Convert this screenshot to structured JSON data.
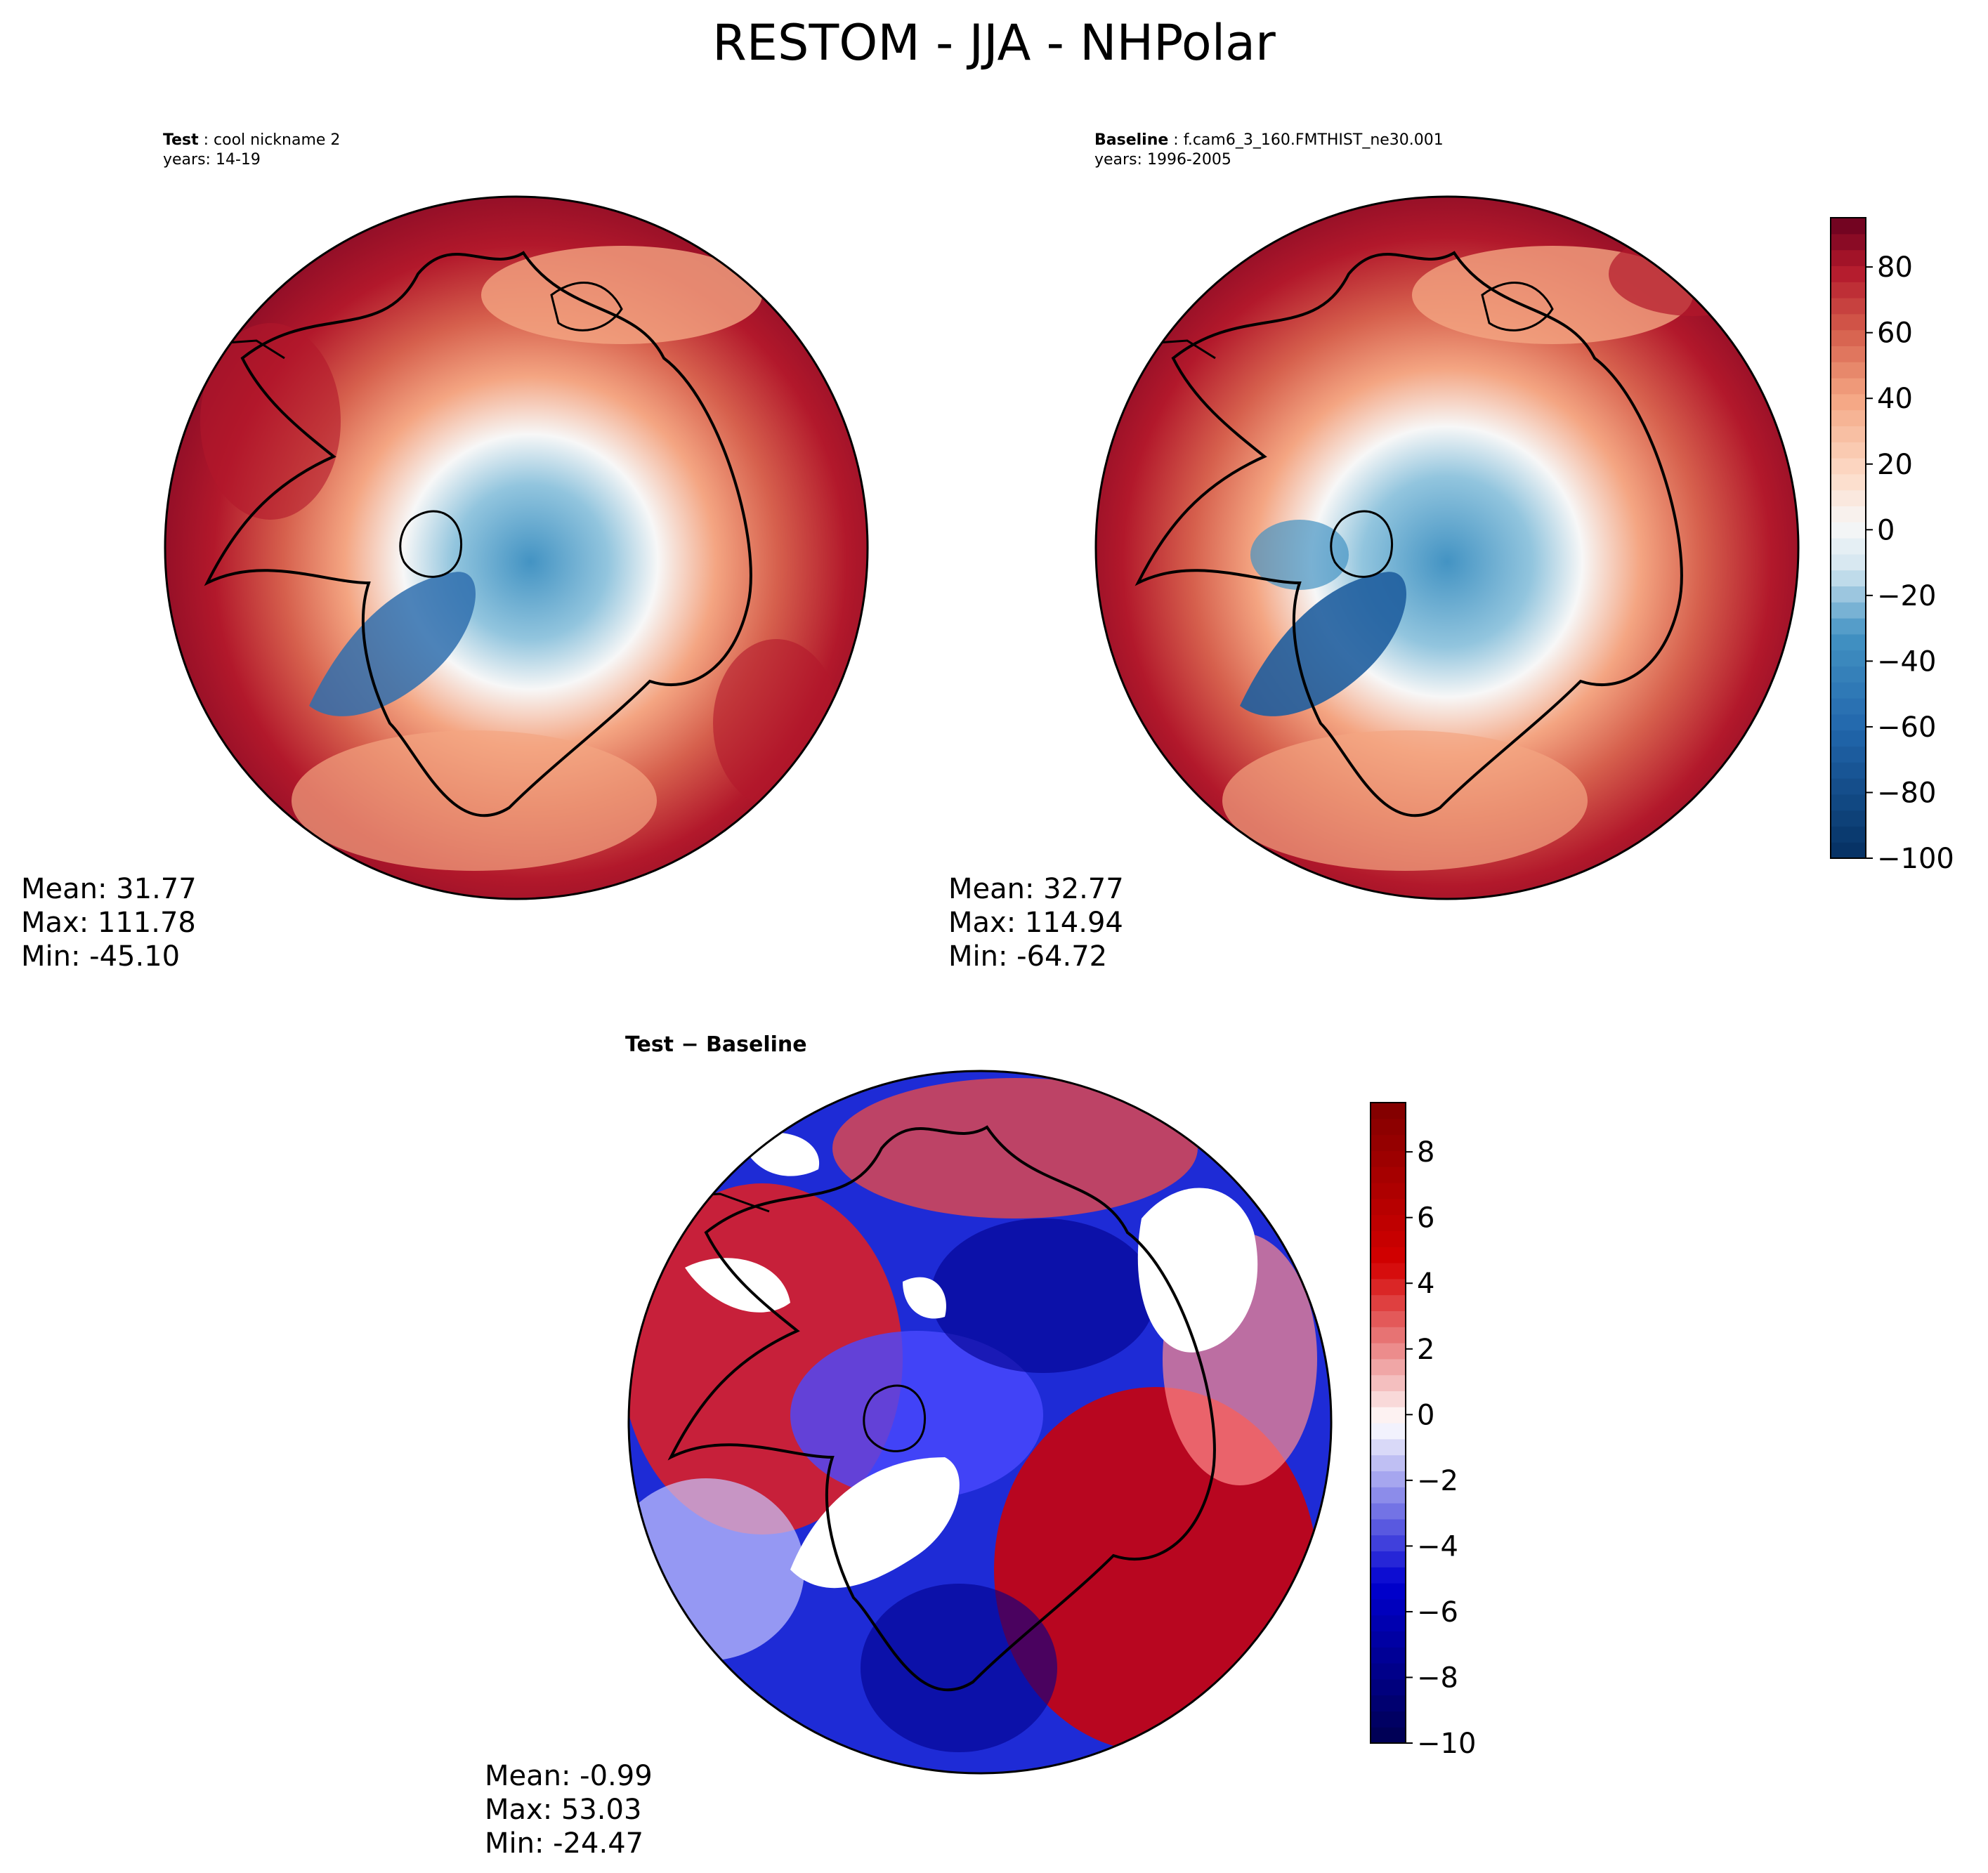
{
  "figure": {
    "title": "RESTOM - JJA - NHPolar"
  },
  "colors": {
    "deep_red": "#67001f",
    "mid_red": "#d6604d",
    "light_red": "#fddbc7",
    "white": "#f7f7f7",
    "light_blue": "#d1e5f0",
    "mid_blue": "#4393c3",
    "deep_blue": "#053061",
    "seismic_red": "#d40000",
    "seismic_blue": "#0000d0",
    "seismic_dark_red": "#800000",
    "seismic_dark_blue": "#000050"
  },
  "panels": {
    "test": {
      "label_bold": "Test",
      "label_rest": " : cool nickname 2",
      "years": "years: 14-19",
      "mean": "Mean: 31.77",
      "max": "Max: 111.78",
      "min": "Min: -45.10"
    },
    "baseline": {
      "label_bold": "Baseline",
      "label_rest": " : f.cam6_3_160.FMTHIST_ne30.001",
      "years": "years: 1996-2005",
      "mean": "Mean: 32.77",
      "max": "Max: 114.94",
      "min": "Min: -64.72"
    },
    "diff": {
      "label": "Test − Baseline",
      "mean": "Mean: -0.99",
      "max": "Max: 53.03",
      "min": "Min: -24.47"
    }
  },
  "chart_data": [
    {
      "type": "heatmap",
      "name": "test",
      "title": "Test : cool nickname 2",
      "projection": "north polar stereographic",
      "colormap": "RdBu_r",
      "value_range": [
        -100,
        95
      ],
      "stats": {
        "mean": 31.77,
        "max": 111.78,
        "min": -45.1
      }
    },
    {
      "type": "heatmap",
      "name": "baseline",
      "title": "Baseline : f.cam6_3_160.FMTHIST_ne30.001",
      "projection": "north polar stereographic",
      "colormap": "RdBu_r",
      "value_range": [
        -100,
        95
      ],
      "stats": {
        "mean": 32.77,
        "max": 114.94,
        "min": -64.72
      },
      "colorbar": {
        "ticks": [
          80,
          60,
          40,
          20,
          0,
          -20,
          -40,
          -60,
          -80,
          -100
        ],
        "tick_labels": [
          "80",
          "60",
          "40",
          "20",
          "0",
          "−20",
          "−40",
          "−60",
          "−80",
          "−100"
        ]
      }
    },
    {
      "type": "heatmap",
      "name": "difference",
      "title": "Test − Baseline",
      "projection": "north polar stereographic",
      "colormap": "seismic",
      "value_range": [
        -10,
        9.5
      ],
      "stats": {
        "mean": -0.99,
        "max": 53.03,
        "min": -24.47
      },
      "colorbar": {
        "ticks": [
          8,
          6,
          4,
          2,
          0,
          -2,
          -4,
          -6,
          -8,
          -10
        ],
        "tick_labels": [
          "8",
          "6",
          "4",
          "2",
          "0",
          "−2",
          "−4",
          "−6",
          "−8",
          "−10"
        ]
      }
    }
  ]
}
